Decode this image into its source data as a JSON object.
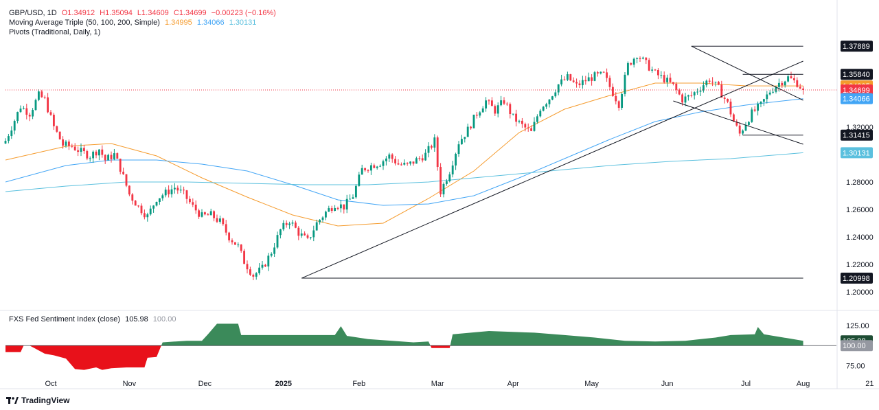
{
  "legend": {
    "symbol": "GBP/USD, 1D",
    "open": "O1.34912",
    "high": "H1.35094",
    "low": "L1.34609",
    "close": "C1.34699",
    "change": "−0.00223 (−0.16%)",
    "ma_label": "Moving Average Triple (50, 100, 200, Simple)",
    "ma50": "1.34995",
    "ma100": "1.34066",
    "ma200": "1.30131",
    "pivots_label": "Pivots (Traditional, Daily, 1)",
    "sentiment_label": "FXS Fed Sentiment Index (close)",
    "sentiment_value": "105.98",
    "sentiment_base": "100.00"
  },
  "brand": "TradingView",
  "colors": {
    "up": "#089981",
    "down": "#f23645",
    "ma50": "#f59b2d",
    "ma100": "#42a5f5",
    "ma200": "#5bc0de",
    "sentiment_pos": "#3b8a5a",
    "sentiment_neg": "#e8111a"
  },
  "chart_data": [
    {
      "type": "candlestick",
      "title": "GBP/USD, 1D",
      "ylim": [
        1.19,
        1.385
      ],
      "y_ticks": [
        "1.20000",
        "1.22000",
        "1.24000",
        "1.26000",
        "1.28000",
        "1.32000"
      ],
      "x_ticks": [
        "Oct",
        "Nov",
        "Dec",
        "2025",
        "Feb",
        "Mar",
        "Apr",
        "May",
        "Jun",
        "Jul",
        "Aug",
        "21"
      ],
      "price_labels": [
        {
          "value": 1.37889,
          "text": "1.37889",
          "color": "#131722"
        },
        {
          "value": 1.3584,
          "text": "1.35840",
          "color": "#131722"
        },
        {
          "value": 1.34995,
          "text": "1.34995",
          "color": "#f59b2d"
        },
        {
          "value": 1.34699,
          "text": "1.34699",
          "color": "#f23645"
        },
        {
          "value": 1.34066,
          "text": "1.34066",
          "color": "#42a5f5"
        },
        {
          "value": 1.31415,
          "text": "1.31415",
          "color": "#131722"
        },
        {
          "value": 1.30131,
          "text": "1.30131",
          "color": "#5bc0de"
        },
        {
          "value": 1.20998,
          "text": "1.20998",
          "color": "#131722"
        }
      ],
      "close_path": [
        [
          0,
          1.31
        ],
        [
          5,
          1.335
        ],
        [
          8,
          1.33
        ],
        [
          11,
          1.343
        ],
        [
          13,
          1.34
        ],
        [
          16,
          1.32
        ],
        [
          19,
          1.307
        ],
        [
          22,
          1.306
        ],
        [
          25,
          1.302
        ],
        [
          28,
          1.299
        ],
        [
          31,
          1.304
        ],
        [
          33,
          1.296
        ],
        [
          36,
          1.3
        ],
        [
          38,
          1.29
        ],
        [
          41,
          1.271
        ],
        [
          44,
          1.262
        ],
        [
          47,
          1.255
        ],
        [
          50,
          1.268
        ],
        [
          53,
          1.272
        ],
        [
          56,
          1.276
        ],
        [
          59,
          1.271
        ],
        [
          62,
          1.262
        ],
        [
          65,
          1.255
        ],
        [
          68,
          1.256
        ],
        [
          71,
          1.251
        ],
        [
          74,
          1.24
        ],
        [
          77,
          1.233
        ],
        [
          79,
          1.222
        ],
        [
          82,
          1.212
        ],
        [
          85,
          1.217
        ],
        [
          88,
          1.229
        ],
        [
          91,
          1.245
        ],
        [
          94,
          1.252
        ],
        [
          97,
          1.243
        ],
        [
          100,
          1.237
        ],
        [
          103,
          1.25
        ],
        [
          106,
          1.258
        ],
        [
          109,
          1.264
        ],
        [
          112,
          1.262
        ],
        [
          115,
          1.27
        ],
        [
          118,
          1.289
        ],
        [
          121,
          1.292
        ],
        [
          124,
          1.294
        ],
        [
          127,
          1.299
        ],
        [
          130,
          1.293
        ],
        [
          133,
          1.292
        ],
        [
          136,
          1.296
        ],
        [
          139,
          1.3
        ],
        [
          142,
          1.31
        ],
        [
          144,
          1.273
        ],
        [
          147,
          1.288
        ],
        [
          150,
          1.309
        ],
        [
          153,
          1.318
        ],
        [
          156,
          1.33
        ],
        [
          159,
          1.339
        ],
        [
          162,
          1.332
        ],
        [
          165,
          1.339
        ],
        [
          168,
          1.327
        ],
        [
          171,
          1.321
        ],
        [
          174,
          1.316
        ],
        [
          177,
          1.334
        ],
        [
          180,
          1.341
        ],
        [
          183,
          1.351
        ],
        [
          186,
          1.356
        ],
        [
          189,
          1.35
        ],
        [
          192,
          1.354
        ],
        [
          195,
          1.357
        ],
        [
          198,
          1.358
        ],
        [
          201,
          1.345
        ],
        [
          203,
          1.337
        ],
        [
          206,
          1.365
        ],
        [
          209,
          1.373
        ],
        [
          212,
          1.366
        ],
        [
          215,
          1.359
        ],
        [
          218,
          1.355
        ],
        [
          221,
          1.35
        ],
        [
          224,
          1.34
        ],
        [
          227,
          1.343
        ],
        [
          230,
          1.349
        ],
        [
          233,
          1.355
        ],
        [
          236,
          1.348
        ],
        [
          239,
          1.337
        ],
        [
          241,
          1.324
        ],
        [
          243,
          1.315
        ],
        [
          245,
          1.323
        ],
        [
          247,
          1.33
        ],
        [
          250,
          1.336
        ],
        [
          253,
          1.346
        ],
        [
          256,
          1.352
        ],
        [
          259,
          1.356
        ],
        [
          262,
          1.352
        ],
        [
          264,
          1.347
        ]
      ],
      "moving_averages": [
        {
          "name": "MA50",
          "color": "#f59b2d",
          "points": [
            [
              0,
              1.296
            ],
            [
              20,
              1.306
            ],
            [
              35,
              1.308
            ],
            [
              50,
              1.299
            ],
            [
              65,
              1.283
            ],
            [
              80,
              1.269
            ],
            [
              95,
              1.256
            ],
            [
              110,
              1.248
            ],
            [
              125,
              1.25
            ],
            [
              140,
              1.268
            ],
            [
              155,
              1.288
            ],
            [
              170,
              1.316
            ],
            [
              185,
              1.333
            ],
            [
              200,
              1.343
            ],
            [
              215,
              1.352
            ],
            [
              230,
              1.352
            ],
            [
              245,
              1.35
            ],
            [
              264,
              1.34995
            ]
          ]
        },
        {
          "name": "MA100",
          "color": "#42a5f5",
          "points": [
            [
              0,
              1.28
            ],
            [
              20,
              1.292
            ],
            [
              35,
              1.296
            ],
            [
              50,
              1.296
            ],
            [
              65,
              1.293
            ],
            [
              80,
              1.288
            ],
            [
              95,
              1.278
            ],
            [
              110,
              1.267
            ],
            [
              125,
              1.263
            ],
            [
              140,
              1.264
            ],
            [
              155,
              1.27
            ],
            [
              170,
              1.283
            ],
            [
              185,
              1.297
            ],
            [
              200,
              1.311
            ],
            [
              215,
              1.324
            ],
            [
              230,
              1.331
            ],
            [
              245,
              1.336
            ],
            [
              264,
              1.34066
            ]
          ]
        },
        {
          "name": "MA200",
          "color": "#5bc0de",
          "points": [
            [
              0,
              1.273
            ],
            [
              20,
              1.277
            ],
            [
              40,
              1.28
            ],
            [
              60,
              1.28
            ],
            [
              80,
              1.279
            ],
            [
              100,
              1.278
            ],
            [
              120,
              1.278
            ],
            [
              140,
              1.28
            ],
            [
              160,
              1.284
            ],
            [
              180,
              1.288
            ],
            [
              200,
              1.292
            ],
            [
              220,
              1.295
            ],
            [
              240,
              1.297
            ],
            [
              264,
              1.30131
            ]
          ]
        }
      ],
      "trendlines": [
        {
          "from": [
            98,
            1.20998
          ],
          "to": [
            264,
            1.368
          ]
        },
        {
          "from": [
            227,
            1.37889
          ],
          "to": [
            264,
            1.3395
          ]
        },
        {
          "from": [
            221,
            1.339
          ],
          "to": [
            264,
            1.3075
          ]
        },
        {
          "from": [
            98,
            1.20998
          ],
          "to": [
            264,
            1.20998
          ]
        },
        {
          "from": [
            227,
            1.37889
          ],
          "to": [
            264,
            1.37889
          ]
        },
        {
          "from": [
            244,
            1.3584
          ],
          "to": [
            264,
            1.3584
          ]
        },
        {
          "from": [
            244,
            1.31415
          ],
          "to": [
            264,
            1.31415
          ]
        }
      ],
      "last_close": 1.34699,
      "x_span": [
        0,
        275
      ]
    },
    {
      "type": "area",
      "title": "FXS Fed Sentiment Index (close)",
      "baseline": 100,
      "ylim": [
        62,
        135
      ],
      "y_ticks": [
        "125.00",
        "75.00"
      ],
      "value_labels": [
        {
          "value": 105.98,
          "text": "105.98",
          "color": "#1e4d34"
        },
        {
          "value": 100,
          "text": "100.00",
          "color": "#9598a1"
        }
      ],
      "points": [
        [
          0,
          92
        ],
        [
          5,
          92
        ],
        [
          6,
          100
        ],
        [
          8,
          100
        ],
        [
          10,
          96
        ],
        [
          13,
          90
        ],
        [
          16,
          88
        ],
        [
          20,
          84
        ],
        [
          23,
          71
        ],
        [
          26,
          70
        ],
        [
          30,
          73
        ],
        [
          32,
          70
        ],
        [
          35,
          72
        ],
        [
          40,
          73
        ],
        [
          46,
          73
        ],
        [
          47,
          85
        ],
        [
          50,
          86
        ],
        [
          52,
          104
        ],
        [
          60,
          106
        ],
        [
          65,
          106
        ],
        [
          67,
          114
        ],
        [
          70,
          127
        ],
        [
          77,
          127
        ],
        [
          78,
          113
        ],
        [
          90,
          113
        ],
        [
          100,
          113
        ],
        [
          109,
          113
        ],
        [
          111,
          124
        ],
        [
          113,
          112
        ],
        [
          120,
          108
        ],
        [
          135,
          104
        ],
        [
          140,
          105
        ],
        [
          141,
          97
        ],
        [
          147,
          97
        ],
        [
          148,
          114
        ],
        [
          160,
          118
        ],
        [
          175,
          116
        ],
        [
          185,
          113
        ],
        [
          195,
          110
        ],
        [
          205,
          106
        ],
        [
          215,
          105
        ],
        [
          225,
          106
        ],
        [
          235,
          110
        ],
        [
          240,
          113
        ],
        [
          248,
          114
        ],
        [
          249,
          123
        ],
        [
          251,
          114
        ],
        [
          264,
          105.98
        ]
      ],
      "x_span": [
        0,
        275
      ]
    }
  ]
}
